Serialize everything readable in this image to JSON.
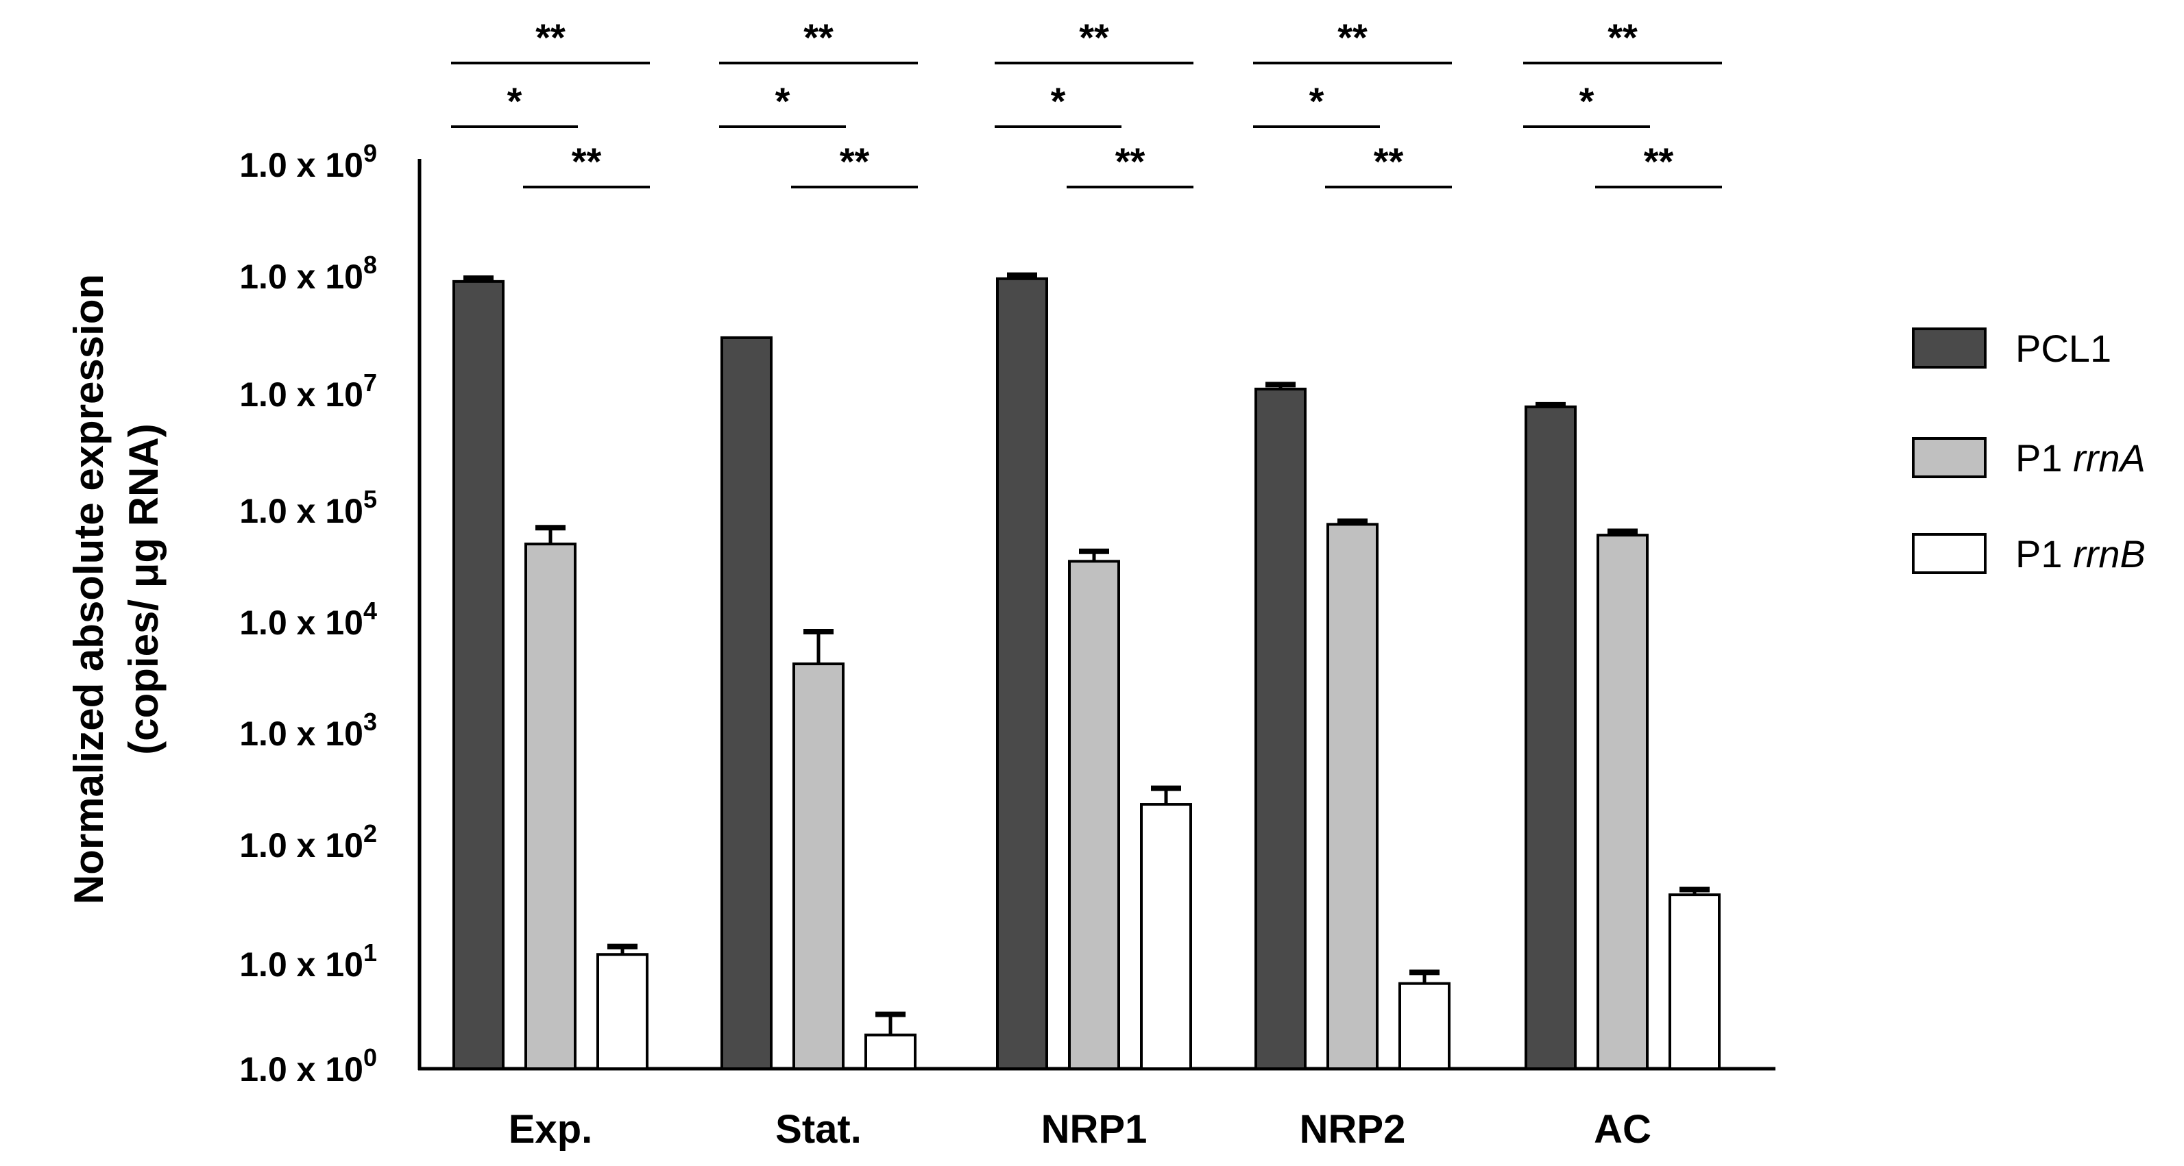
{
  "chart_data": {
    "type": "bar",
    "title": "",
    "xlabel": "",
    "ylabel_lines": [
      "Normalized absolute expression",
      "(copies/ μg RNA)"
    ],
    "yscale": "log",
    "ylim": [
      1,
      1000000000
    ],
    "categories": [
      "Exp.",
      "Stat.",
      "NRP1",
      "NRP2",
      "AC"
    ],
    "y_ticks": [
      {
        "base": "1.0 x 10",
        "exp": "9"
      },
      {
        "base": "1.0 x 10",
        "exp": "8"
      },
      {
        "base": "1.0 x 10",
        "exp": "7"
      },
      {
        "base": "1.0 x 10",
        "exp": "5"
      },
      {
        "base": "1.0 x 10",
        "exp": "4"
      },
      {
        "base": "1.0 x 10",
        "exp": "3"
      },
      {
        "base": "1.0 x 10",
        "exp": "2"
      },
      {
        "base": "1.0 x 10",
        "exp": "1"
      },
      {
        "base": "1.0 x 10",
        "exp": "0"
      }
    ],
    "series": [
      {
        "name": "PCL1",
        "name_plain": "PCL1",
        "name_italic": "",
        "color": "#4a4a4a",
        "values": [
          90000000,
          30000000,
          95000000,
          11000000,
          6000000
        ],
        "errors": [
          6000000,
          0,
          7000000,
          1000000,
          500000
        ]
      },
      {
        "name": "P1 rrnA",
        "name_plain": "P1 ",
        "name_italic": "rrnA",
        "color": "#c0c0c0",
        "values": [
          50000,
          4200,
          35000,
          75000,
          60000
        ],
        "errors": [
          20000,
          4000,
          8000,
          5000,
          5000
        ]
      },
      {
        "name": "P1 rrnB",
        "name_plain": "P1 ",
        "name_italic": "rrnB",
        "color": "#ffffff",
        "values": [
          12,
          2.1,
          230,
          6.5,
          38
        ],
        "errors": [
          2,
          1.2,
          90,
          1.8,
          4
        ]
      }
    ],
    "significance": [
      {
        "from": 0,
        "to": 2,
        "label": "**"
      },
      {
        "from": 0,
        "to": 1,
        "label": "*"
      },
      {
        "from": 1,
        "to": 2,
        "label": "**"
      }
    ],
    "legend_position": "right"
  }
}
